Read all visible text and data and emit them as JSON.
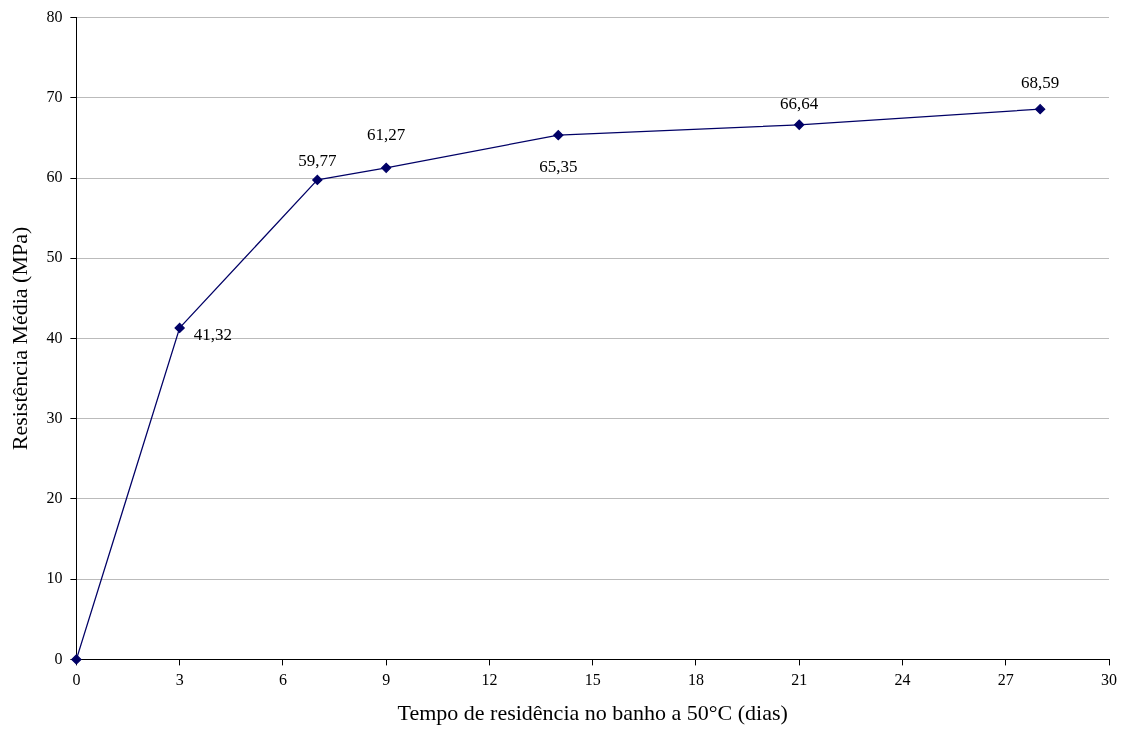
{
  "chart_data": {
    "type": "line",
    "xlabel": "Tempo de residência no banho a 50°C (dias)",
    "ylabel": "Resistência Média (MPa)",
    "x": [
      0,
      3,
      7,
      9,
      14,
      21,
      28
    ],
    "series": [
      {
        "color": "#000066",
        "values": [
          0,
          41.32,
          59.77,
          61.27,
          65.35,
          66.64,
          68.59
        ],
        "value_labels": [
          null,
          "41,32",
          "59,77",
          "61,27",
          "65,35",
          "66,64",
          "68,59"
        ]
      }
    ],
    "xlim": [
      0,
      30
    ],
    "xticks": [
      0,
      3,
      6,
      9,
      12,
      15,
      18,
      21,
      24,
      27,
      30
    ],
    "ylim": [
      0,
      80
    ],
    "yticks": [
      0,
      10,
      20,
      30,
      40,
      50,
      60,
      70,
      80
    ],
    "grid": "y",
    "legend": false,
    "marker": "diamond",
    "line_style": "solid"
  }
}
